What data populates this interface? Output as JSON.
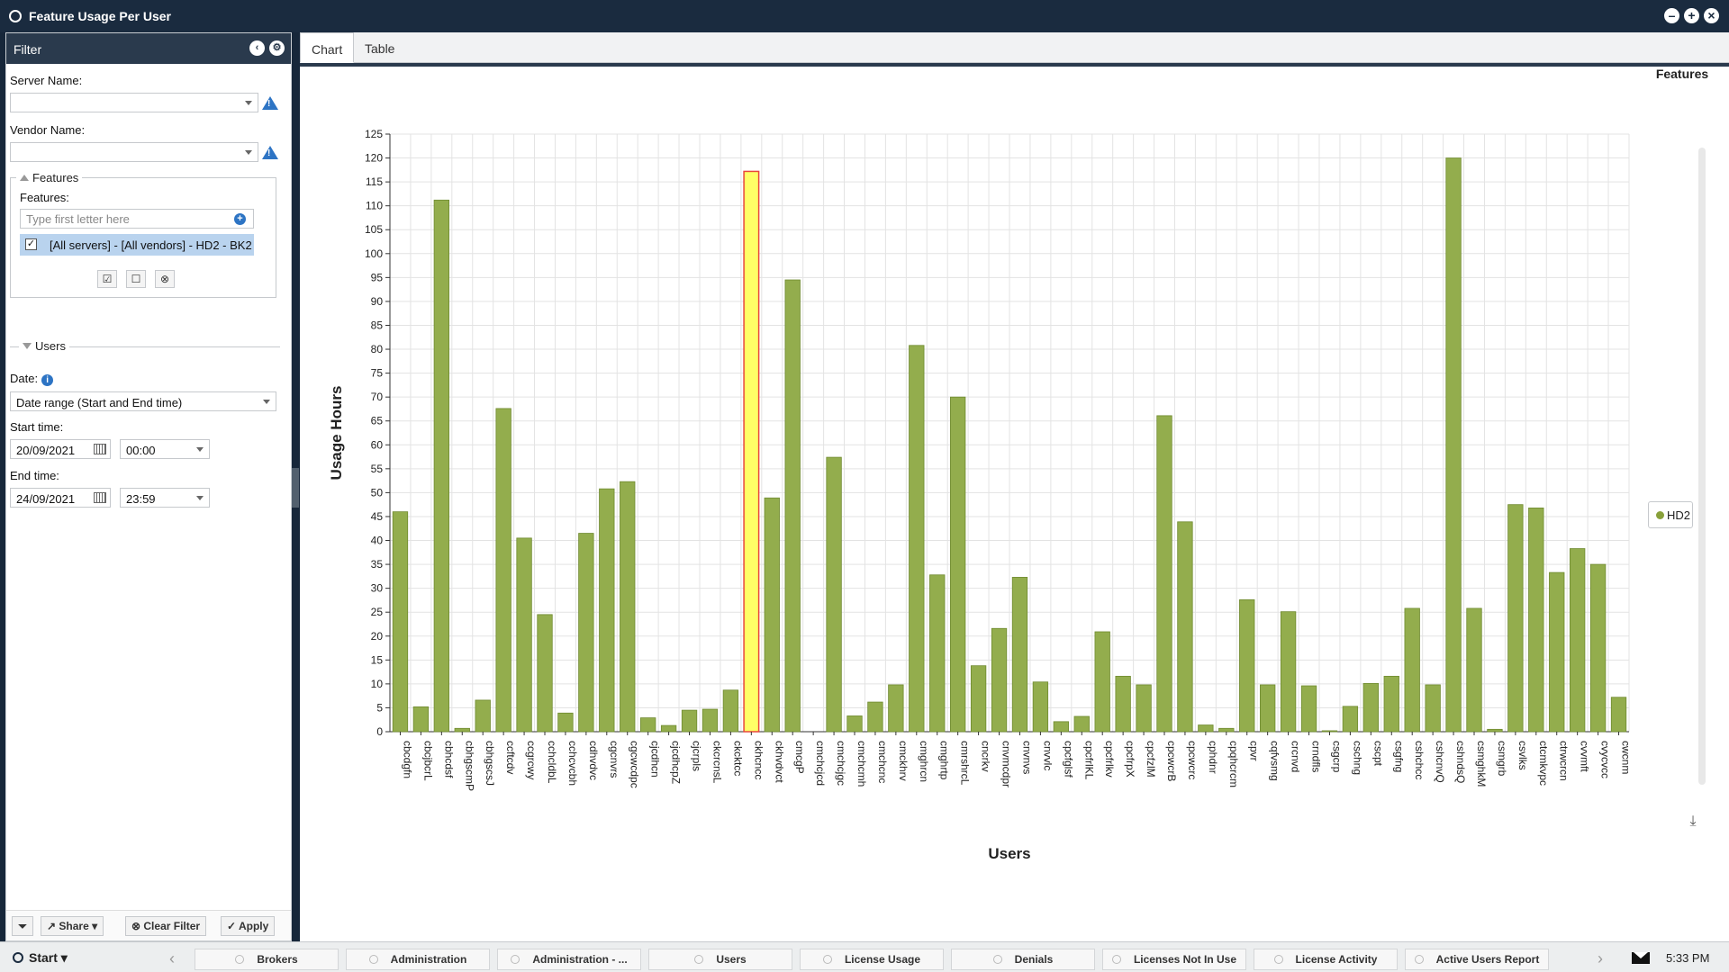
{
  "window": {
    "title": "Feature Usage Per User"
  },
  "filter": {
    "header": "Filter",
    "server_label": "Server Name:",
    "server_value": "",
    "vendor_label": "Vendor Name:",
    "vendor_value": "",
    "features_group": "Features",
    "features_label": "Features:",
    "features_placeholder": "Type first letter here",
    "selected_feature": "[All servers] - [All vendors] - HD2 - BK2",
    "users_group": "Users",
    "date_label": "Date:",
    "date_mode": "Date range (Start and End time)",
    "start_label": "Start time:",
    "start_date": "20/09/2021",
    "start_time": "00:00",
    "end_label": "End time:",
    "end_date": "24/09/2021",
    "end_time": "23:59",
    "share_label": "Share",
    "clear_label": "Clear Filter",
    "apply_label": "Apply"
  },
  "tabs": [
    {
      "label": "Chart",
      "active": true
    },
    {
      "label": "Table",
      "active": false
    }
  ],
  "features_panel_title": "Features",
  "legend_label": "HD2",
  "colors": {
    "bar": "#93ad4d",
    "bar_stroke": "#6f8a2f",
    "highlight": "#ffff66",
    "highlight_stroke": "#e8473c",
    "header": "#1a2b3f"
  },
  "chart_data": {
    "type": "bar",
    "xlabel": "Users",
    "ylabel": "Usage Hours",
    "ylim": [
      0,
      125
    ],
    "ytick_step": 5,
    "grid": true,
    "legend_position": "right",
    "highlight_index": 17,
    "categories": [
      "cbcdgfn",
      "cbcjbcrL",
      "cbhcdsf",
      "cbhgscmP",
      "cbhgscsJ",
      "ccftcdv",
      "ccgrcwy",
      "cchcldbL",
      "cchcvcbh",
      "cdhvdvc",
      "cgcnvrs",
      "cgcwcdpc",
      "cjcdhcn",
      "cjcdhcpZ",
      "cjcrpls",
      "ckcrcnsL",
      "ckcktcc",
      "ckhcncc",
      "ckhvdvct",
      "cmcgP",
      "cmchcjcd",
      "cmchcjgc",
      "cmchcmh",
      "cmchcnc",
      "cmckhrv",
      "cmghrcn",
      "cmghrtp",
      "cmrshrcL",
      "cncrkv",
      "cnvmcdpr",
      "cnvnvs",
      "cnvvlc",
      "cpcfglsf",
      "cpcfrlKL",
      "cpcfrlkv",
      "cpcfrpX",
      "cpcfzlM",
      "cpcwcrB",
      "cpcwcrc",
      "cphdnr",
      "cpqhcrcm",
      "cpvr",
      "cqfvsmg",
      "crcnvd",
      "crndfls",
      "csgcrp",
      "cschng",
      "cscpt",
      "csgfng",
      "cshchcc",
      "cshcnvQ",
      "cshndsQ",
      "csmghkM",
      "csmgrb",
      "csvlks",
      "ctcmkvpc",
      "ctrwcrcn",
      "cvvmft",
      "cvycvcc",
      "cwcnm"
    ],
    "series": [
      {
        "name": "HD2",
        "values": [
          46,
          5.2,
          111.2,
          0.7,
          6.6,
          67.6,
          40.5,
          24.5,
          3.9,
          41.5,
          50.8,
          52.3,
          2.9,
          1.3,
          4.5,
          4.7,
          8.7,
          117.2,
          48.9,
          94.5,
          0,
          57.4,
          3.3,
          6.2,
          9.8,
          80.8,
          32.8,
          70,
          13.8,
          21.6,
          32.3,
          10.4,
          2.1,
          3.2,
          20.9,
          11.6,
          9.8,
          66.1,
          43.9,
          1.4,
          0.7,
          27.6,
          9.8,
          25.1,
          9.6,
          0.2,
          5.3,
          10.1,
          11.6,
          25.8,
          9.8,
          120,
          25.8,
          0.5,
          47.5,
          46.8,
          33.3,
          38.3,
          35,
          7.2
        ]
      }
    ]
  },
  "taskbar": {
    "start_label": "Start",
    "items": [
      "Brokers",
      "Administration",
      "Administration - ...",
      "Users",
      "License Usage",
      "Denials",
      "Licenses Not In Use",
      "License Activity",
      "Active Users Report"
    ],
    "clock": "5:33 PM"
  }
}
